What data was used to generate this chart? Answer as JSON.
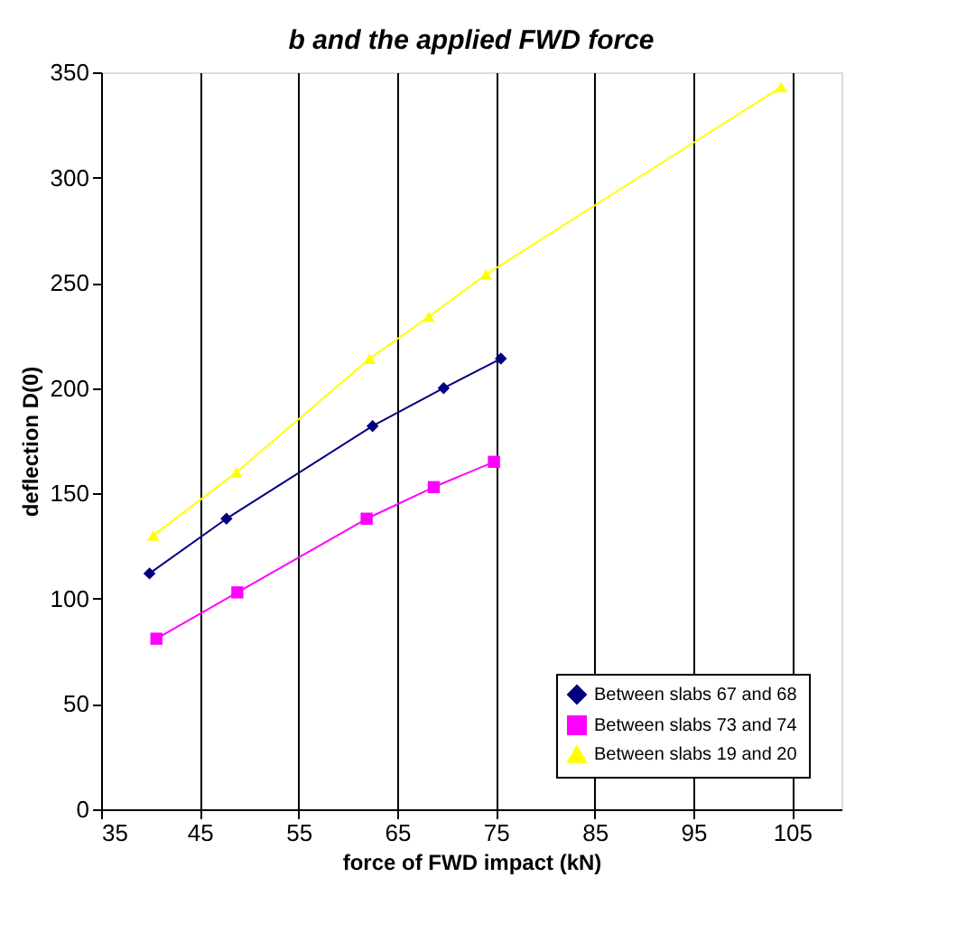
{
  "chart_data": {
    "type": "line",
    "title": "b and the applied FWD force",
    "xlabel": "force of FWD impact (kN)",
    "ylabel": "deflection D(0)",
    "xlim": [
      35,
      110
    ],
    "xticks": [
      35,
      45,
      55,
      65,
      75,
      85,
      95,
      105
    ],
    "ylim": [
      0,
      350
    ],
    "yticks": [
      0,
      50,
      100,
      150,
      200,
      250,
      300,
      350
    ],
    "grid": "x",
    "legend": "bottom right",
    "series": [
      {
        "name": "Between slabs 67 and 68",
        "color": "#000080",
        "marker": "diamond",
        "x": [
          39.9,
          47.7,
          62.5,
          69.7,
          75.5
        ],
        "values": [
          112,
          138,
          182,
          200,
          214
        ]
      },
      {
        "name": "Between slabs 73 and 74",
        "color": "#ff00ff",
        "marker": "square",
        "x": [
          40.6,
          48.8,
          61.9,
          68.7,
          74.8
        ],
        "values": [
          81,
          103,
          138,
          153,
          165
        ]
      },
      {
        "name": "Between slabs 19 and 20",
        "color": "#ffff00",
        "marker": "triangle",
        "x": [
          40.3,
          48.7,
          62.2,
          68.2,
          74.0,
          103.9
        ],
        "values": [
          130,
          160,
          214,
          234,
          254,
          343
        ]
      }
    ]
  }
}
